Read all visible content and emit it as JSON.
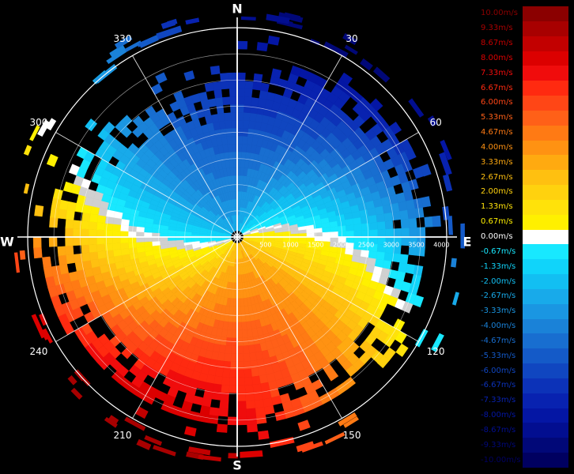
{
  "compass": {
    "north": "N",
    "south": "S",
    "east": "E",
    "west": "W"
  },
  "azimuth_labels": [
    {
      "deg": 30,
      "text": "30"
    },
    {
      "deg": 60,
      "text": "60"
    },
    {
      "deg": 120,
      "text": "120"
    },
    {
      "deg": 150,
      "text": "150"
    },
    {
      "deg": 210,
      "text": "210"
    },
    {
      "deg": 240,
      "text": "240"
    },
    {
      "deg": 300,
      "text": "300"
    },
    {
      "deg": 330,
      "text": "330"
    }
  ],
  "range_labels": [
    "500",
    "1000",
    "1500",
    "2000",
    "2500",
    "3000",
    "3500",
    "4000"
  ],
  "legend": {
    "entries": [
      {
        "label": "10.00m/s",
        "color": "#8b0000"
      },
      {
        "label": "9.33m/s",
        "color": "#a80000"
      },
      {
        "label": "8.67m/s",
        "color": "#c20000"
      },
      {
        "label": "8.00m/s",
        "color": "#dc0000"
      },
      {
        "label": "7.33m/s",
        "color": "#f00c0c"
      },
      {
        "label": "6.67m/s",
        "color": "#ff2a10"
      },
      {
        "label": "6.00m/s",
        "color": "#ff4616"
      },
      {
        "label": "5.33m/s",
        "color": "#ff6018"
      },
      {
        "label": "4.67m/s",
        "color": "#ff7a14"
      },
      {
        "label": "4.00m/s",
        "color": "#ff9212"
      },
      {
        "label": "3.33m/s",
        "color": "#ffaa10"
      },
      {
        "label": "2.67m/s",
        "color": "#ffc010"
      },
      {
        "label": "2.00m/s",
        "color": "#ffd20e"
      },
      {
        "label": "1.33m/s",
        "color": "#ffe20a"
      },
      {
        "label": "0.67m/s",
        "color": "#fff000"
      },
      {
        "label": "0.00m/s",
        "color": "#ffffff"
      },
      {
        "label": "-0.67m/s",
        "color": "#18e8ff"
      },
      {
        "label": "-1.33m/s",
        "color": "#10d4fa"
      },
      {
        "label": "-2.00m/s",
        "color": "#12bff2"
      },
      {
        "label": "-2.67m/s",
        "color": "#18aaea"
      },
      {
        "label": "-3.33m/s",
        "color": "#1a96e2"
      },
      {
        "label": "-4.00m/s",
        "color": "#1a82d8"
      },
      {
        "label": "-4.67m/s",
        "color": "#186ed0"
      },
      {
        "label": "-5.33m/s",
        "color": "#145ac8"
      },
      {
        "label": "-6.00m/s",
        "color": "#1046c0"
      },
      {
        "label": "-6.67m/s",
        "color": "#0c32b8"
      },
      {
        "label": "-7.33m/s",
        "color": "#0822b0"
      },
      {
        "label": "-8.00m/s",
        "color": "#0416a4"
      },
      {
        "label": "-8.67m/s",
        "color": "#020e90"
      },
      {
        "label": "-9.33m/s",
        "color": "#010878"
      },
      {
        "label": "-10.00m/s",
        "color": "#000060"
      }
    ]
  }
}
